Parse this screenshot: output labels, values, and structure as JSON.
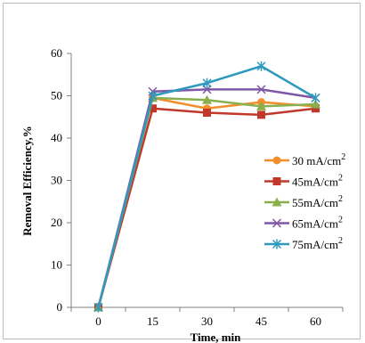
{
  "chart_data": {
    "type": "line",
    "xlabel": "Time, min",
    "ylabel": "Removal Efficiency,%",
    "ylim": [
      0,
      60
    ],
    "yticks": [
      0,
      10,
      20,
      30,
      40,
      50,
      60
    ],
    "categories": [
      "0",
      "15",
      "30",
      "45",
      "60"
    ],
    "grid": false,
    "legend_position": "right",
    "series": [
      {
        "name": "30 mA/cm",
        "sup": "2",
        "color": "#f28e2b",
        "marker": "circle",
        "values": [
          0,
          49.5,
          47,
          48.5,
          47.5
        ]
      },
      {
        "name": "45mA/cm",
        "sup": "2",
        "color": "#c0392b",
        "marker": "square",
        "values": [
          0,
          47,
          46,
          45.5,
          47
        ]
      },
      {
        "name": "55mA/cm",
        "sup": "2",
        "color": "#8ab04e",
        "marker": "triangle",
        "values": [
          0,
          49.5,
          49,
          47.5,
          48
        ]
      },
      {
        "name": "65mA/cm",
        "sup": "2",
        "color": "#7e57a7",
        "marker": "x",
        "values": [
          0,
          51,
          51.5,
          51.5,
          49.5
        ]
      },
      {
        "name": "75mA/cm",
        "sup": "2",
        "color": "#2e9bbd",
        "marker": "star",
        "values": [
          0,
          50,
          53,
          57,
          49.5
        ]
      }
    ]
  }
}
